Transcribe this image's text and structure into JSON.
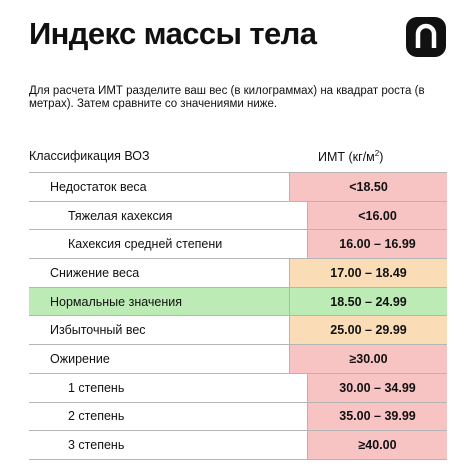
{
  "title": "Индекс массы тела",
  "logo_icon": "brand-logo-icon",
  "intro": "Для расчета ИМТ разделите ваш вес (в килограммах) на квадрат роста (в метрах). Затем сравните со значениями ниже.",
  "table": {
    "header_left": "Классификация ВОЗ",
    "header_right_base": "ИМТ (кг/м",
    "header_right_sup": "2",
    "header_right_close": ")",
    "rows": [
      {
        "label": "Недостаток веса",
        "value": "<18.50",
        "color": "#f7c3c3"
      },
      {
        "label": "Тяжелая кахексия",
        "value": "<16.00",
        "color": "#f7c3c3"
      },
      {
        "label": "Кахексия средней степени",
        "value": "16.00 – 16.99",
        "color": "#f7c3c3"
      },
      {
        "label": "Снижение веса",
        "value": "17.00 – 18.49",
        "color": "#fadcb6"
      },
      {
        "label": "Нормальные значения",
        "value": "18.50 – 24.99",
        "color": "#bdebb6"
      },
      {
        "label": "Избыточный вес",
        "value": "25.00 – 29.99",
        "color": "#fadcb6"
      },
      {
        "label": "Ожирение",
        "value": "≥30.00",
        "color": "#f7c3c3"
      },
      {
        "label": "1 степень",
        "value": "30.00 – 34.99",
        "color": "#f7c3c3"
      },
      {
        "label": "2 степень",
        "value": "35.00 – 39.99",
        "color": "#f7c3c3"
      },
      {
        "label": "3 степень",
        "value": "≥40.00",
        "color": "#f7c3c3"
      }
    ]
  }
}
